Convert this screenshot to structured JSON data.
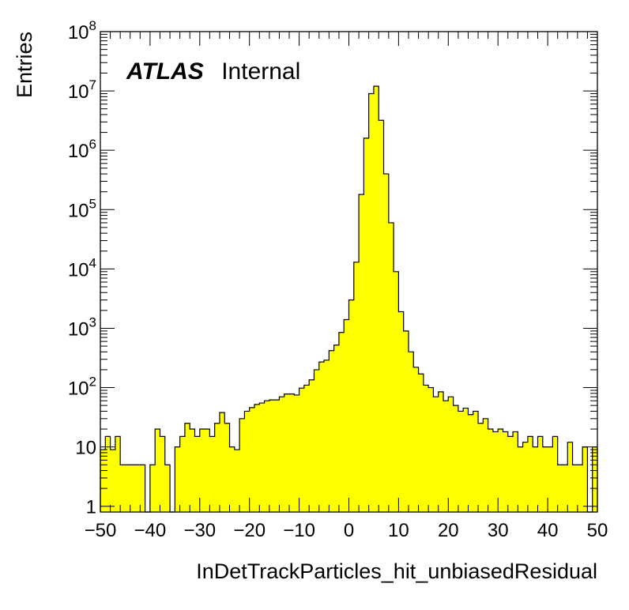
{
  "chart_data": {
    "type": "bar",
    "histogram": true,
    "xlabel": "InDetTrackParticles_hit_unbiasedResidual",
    "ylabel": "Entries",
    "xlim": [
      -50,
      50
    ],
    "ylim": [
      0.8,
      100000000
    ],
    "log_y": true,
    "grid": false,
    "legend": "none",
    "bin_width": 1,
    "x_start": -50,
    "x_ticks": [
      "−50",
      "−40",
      "−30",
      "−20",
      "−10",
      "0",
      "10",
      "20",
      "30",
      "40",
      "50"
    ],
    "y_ticks": [
      {
        "value": 1,
        "base": "1",
        "exp": ""
      },
      {
        "value": 10,
        "base": "10",
        "exp": ""
      },
      {
        "value": 100,
        "base": "10",
        "exp": "2"
      },
      {
        "value": 1000,
        "base": "10",
        "exp": "3"
      },
      {
        "value": 10000,
        "base": "10",
        "exp": "4"
      },
      {
        "value": 100000,
        "base": "10",
        "exp": "5"
      },
      {
        "value": 1000000,
        "base": "10",
        "exp": "6"
      },
      {
        "value": 10000000,
        "base": "10",
        "exp": "7"
      },
      {
        "value": 100000000,
        "base": "10",
        "exp": "8"
      }
    ],
    "annotation": {
      "bold": "ATLAS",
      "text": "Internal"
    },
    "fill_color": "#ffff00",
    "line_color": "#000000",
    "values": [
      9,
      15,
      9,
      15,
      5,
      5,
      5,
      5,
      5,
      0,
      5,
      20,
      15,
      5,
      0,
      10,
      15,
      25,
      20,
      15,
      20,
      20,
      15,
      25,
      38,
      25,
      10,
      9,
      30,
      40,
      46,
      52,
      55,
      60,
      62,
      62,
      70,
      78,
      78,
      75,
      98,
      110,
      135,
      200,
      270,
      290,
      420,
      520,
      850,
      1400,
      3000,
      13000,
      180000,
      1600000,
      9000000,
      12000000,
      3200000,
      400000,
      60000,
      9000,
      1900,
      900,
      400,
      220,
      170,
      110,
      100,
      70,
      85,
      60,
      70,
      50,
      40,
      45,
      35,
      40,
      25,
      30,
      20,
      18,
      20,
      18,
      15,
      18,
      10,
      12,
      15,
      10,
      15,
      10,
      10,
      15,
      5,
      5,
      12,
      5,
      5,
      10,
      0,
      10
    ]
  }
}
